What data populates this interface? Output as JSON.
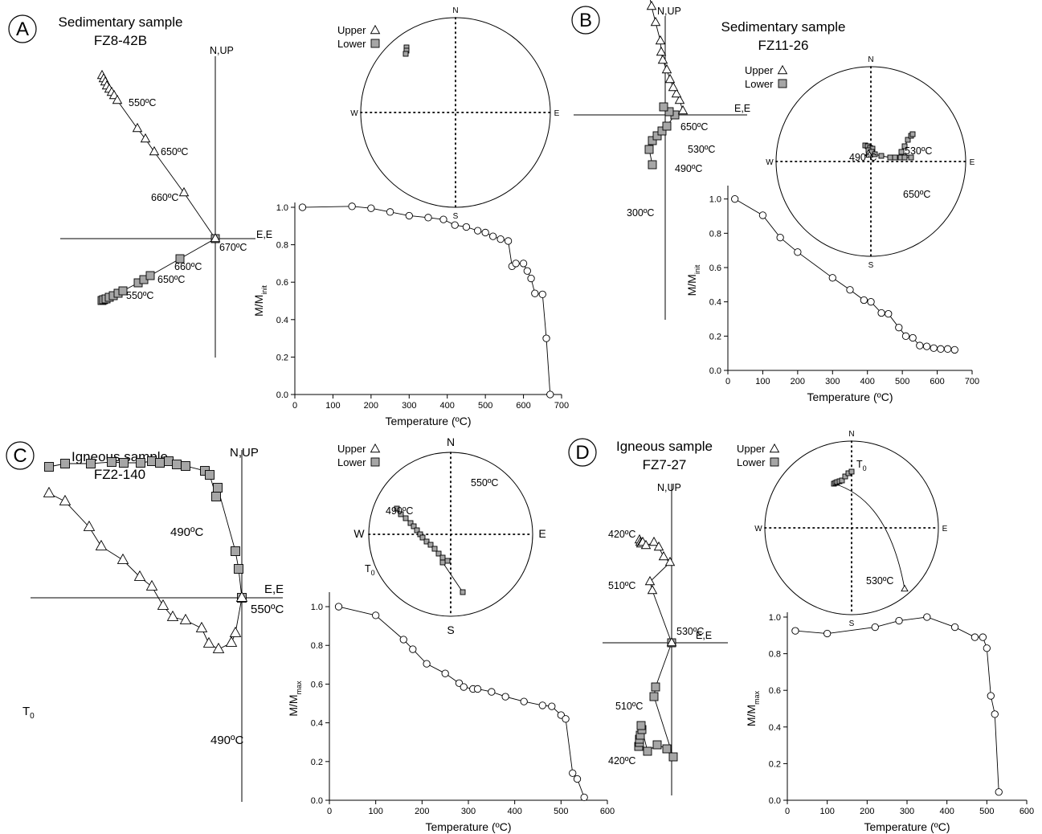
{
  "chart_data": [
    {
      "panel": "A",
      "title": "Sedimentary sample",
      "subtitle": "FZ8-42B",
      "zijderveld": {
        "axis_labels": {
          "vertical": "N,UP",
          "horizontal": "E,E"
        },
        "upper": [
          [
            -141,
            -203
          ],
          [
            -139,
            -199
          ],
          [
            -137,
            -195
          ],
          [
            -135,
            -190
          ],
          [
            -132,
            -186
          ],
          [
            -129,
            -182
          ],
          [
            -126,
            -178
          ],
          [
            -122,
            -172
          ],
          [
            -97,
            -137
          ],
          [
            -87,
            -124
          ],
          [
            -76,
            -108
          ],
          [
            -39,
            -57
          ],
          [
            0,
            0
          ]
        ],
        "lower": [
          [
            -141,
            77
          ],
          [
            -139,
            76
          ],
          [
            -136,
            75
          ],
          [
            -132,
            73
          ],
          [
            -127,
            71
          ],
          [
            -121,
            68
          ],
          [
            -115,
            65
          ],
          [
            -96,
            55
          ],
          [
            -89,
            51
          ],
          [
            -81,
            46
          ],
          [
            -44,
            25
          ],
          [
            0,
            0
          ]
        ],
        "annotations": [
          "550ºC",
          "650ºC",
          "660ºC",
          "670ºC",
          "660ºC",
          "650ºC",
          "550ºC"
        ]
      },
      "stereonet": {
        "directions": [
          "N",
          "S",
          "E",
          "W"
        ],
        "legend": [
          "Upper",
          "Lower"
        ],
        "lower_points": [
          [
            -61,
            -81
          ],
          [
            -61,
            -77
          ],
          [
            -62,
            -73
          ]
        ],
        "upper_points": []
      },
      "demag_curve": {
        "type": "line",
        "xlabel": "Temperature (ºC)",
        "ylabel_main": "M/M",
        "ylabel_sub": "init",
        "xlim": [
          0,
          700
        ],
        "ylim": [
          0,
          1
        ],
        "xticks": [
          0,
          100,
          200,
          300,
          400,
          500,
          600,
          700
        ],
        "yticks": [
          "0.0",
          "0.2",
          "0.4",
          "0.6",
          "0.8",
          "1.0"
        ],
        "x": [
          20,
          150,
          200,
          250,
          300,
          350,
          390,
          420,
          450,
          480,
          500,
          520,
          540,
          560,
          570,
          580,
          600,
          610,
          620,
          630,
          650,
          660,
          670
        ],
        "y": [
          1.0,
          1.005,
          0.995,
          0.975,
          0.955,
          0.945,
          0.935,
          0.905,
          0.895,
          0.875,
          0.865,
          0.845,
          0.83,
          0.82,
          0.685,
          0.7,
          0.7,
          0.66,
          0.62,
          0.54,
          0.535,
          0.3,
          0.0
        ]
      }
    },
    {
      "panel": "B",
      "title": "Sedimentary sample",
      "subtitle": "FZ11-26",
      "zijderveld": {
        "axis_labels": {
          "vertical": "N,UP",
          "horizontal": "E,E"
        },
        "upper": [
          [
            22,
            -5
          ],
          [
            18,
            -18
          ],
          [
            14,
            -26
          ],
          [
            10,
            -34
          ],
          [
            6,
            -44
          ],
          [
            2,
            -56
          ],
          [
            -3,
            -68
          ],
          [
            -5,
            -78
          ],
          [
            -6,
            -92
          ],
          [
            -12,
            -115
          ],
          [
            -17,
            -135
          ],
          [
            -20,
            -150
          ],
          [
            -22,
            -175
          ],
          [
            -24,
            -204
          ],
          [
            -20,
            -218
          ]
        ],
        "lower": [
          [
            -16,
            62
          ],
          [
            -20,
            43
          ],
          [
            -16,
            32
          ],
          [
            -10,
            26
          ],
          [
            -4,
            20
          ],
          [
            2,
            14
          ],
          [
            12,
            0
          ],
          [
            5,
            -4
          ],
          [
            -2,
            -10
          ]
        ],
        "annotations": [
          "650ºC",
          "530ºC",
          "490ºC",
          "300ºC"
        ]
      },
      "stereonet": {
        "directions": [
          "N",
          "S",
          "E",
          "W"
        ],
        "legend": [
          "Upper",
          "Lower"
        ],
        "lower_points": [
          [
            -7,
            -20
          ],
          [
            -4,
            -19
          ],
          [
            -1,
            -17
          ],
          [
            2,
            -16
          ],
          [
            -3,
            -14
          ],
          [
            1,
            -12
          ],
          [
            5,
            -9
          ],
          [
            13,
            -7
          ],
          [
            24,
            -5
          ],
          [
            30,
            -5
          ],
          [
            37,
            -5
          ],
          [
            42,
            -5
          ],
          [
            50,
            -5
          ],
          [
            38,
            -12
          ],
          [
            42,
            -19
          ],
          [
            46,
            -27
          ],
          [
            50,
            -32
          ],
          [
            52,
            -34
          ]
        ],
        "upper_points": [
          [
            -3,
            -10
          ],
          [
            -2,
            -8
          ]
        ],
        "annotations": [
          "530ºC",
          "490ºC",
          "650ºC"
        ]
      },
      "demag_curve": {
        "type": "line",
        "xlabel": "Temperature (ºC)",
        "ylabel_main": "M/M",
        "ylabel_sub": "init",
        "xlim": [
          0,
          700
        ],
        "ylim": [
          0,
          1.05
        ],
        "xticks": [
          0,
          100,
          200,
          300,
          400,
          500,
          600,
          700
        ],
        "yticks": [
          "0.0",
          "0.2",
          "0.4",
          "0.6",
          "0.8",
          "1.0"
        ],
        "x": [
          20,
          100,
          150,
          200,
          300,
          350,
          390,
          410,
          440,
          460,
          490,
          510,
          530,
          550,
          570,
          590,
          610,
          630,
          650
        ],
        "y": [
          1.0,
          0.905,
          0.775,
          0.69,
          0.54,
          0.47,
          0.41,
          0.4,
          0.335,
          0.33,
          0.25,
          0.2,
          0.19,
          0.145,
          0.14,
          0.13,
          0.125,
          0.125,
          0.12
        ]
      }
    },
    {
      "panel": "C",
      "title": "Igneous sample",
      "subtitle": "FZ2-140",
      "zijderveld": {
        "axis_labels": {
          "vertical": "N,UP",
          "horizontal": "E,E"
        },
        "upper": [
          [
            -240,
            -130
          ],
          [
            -220,
            -120
          ],
          [
            -190,
            -88
          ],
          [
            -175,
            -64
          ],
          [
            -148,
            -47
          ],
          [
            -127,
            -26
          ],
          [
            -112,
            -14
          ],
          [
            -98,
            10
          ],
          [
            -86,
            24
          ],
          [
            -70,
            28
          ],
          [
            -50,
            38
          ],
          [
            -41,
            57
          ],
          [
            -29,
            64
          ],
          [
            -13,
            56
          ],
          [
            -8,
            44
          ],
          [
            0,
            0
          ]
        ],
        "lower": [
          [
            -240,
            -163
          ],
          [
            -220,
            -167
          ],
          [
            -188,
            -167
          ],
          [
            -162,
            -169
          ],
          [
            -147,
            -168
          ],
          [
            -126,
            -168
          ],
          [
            -112,
            -170
          ],
          [
            -102,
            -168
          ],
          [
            -91,
            -170
          ],
          [
            -81,
            -166
          ],
          [
            -70,
            -164
          ],
          [
            -46,
            -158
          ],
          [
            -40,
            -153
          ],
          [
            -32,
            -126
          ],
          [
            -30,
            -137
          ],
          [
            -8,
            -58
          ],
          [
            -4,
            -36
          ],
          [
            0,
            0
          ]
        ],
        "annotations": [
          "490ºC",
          "550ºC",
          "490ºC"
        ],
        "start_label": "T"
      },
      "stereonet": {
        "directions": [
          "N",
          "S",
          "E",
          "W"
        ],
        "legend": [
          "Upper",
          "Lower"
        ],
        "lower_points": [
          [
            -67,
            -32
          ],
          [
            -62,
            -25
          ],
          [
            -56,
            -20
          ],
          [
            -50,
            -14
          ],
          [
            -46,
            -10
          ],
          [
            -42,
            -5
          ],
          [
            -38,
            0
          ],
          [
            -35,
            4
          ],
          [
            -30,
            9
          ],
          [
            -25,
            13
          ],
          [
            -20,
            18
          ],
          [
            -15,
            24
          ],
          [
            -10,
            29
          ],
          [
            -4,
            33
          ],
          [
            -10,
            35
          ],
          [
            15,
            72
          ]
        ],
        "upper_points": [],
        "annotations": [
          "550ºC",
          "490ºC"
        ],
        "start_label": "T"
      },
      "demag_curve": {
        "type": "line",
        "xlabel": "Temperature (ºC)",
        "ylabel_main": "M/M",
        "ylabel_sub": "max",
        "xlim": [
          0,
          600
        ],
        "ylim": [
          0,
          1.05
        ],
        "xticks": [
          0,
          100,
          200,
          300,
          400,
          500,
          600
        ],
        "yticks": [
          "0.0",
          "0.2",
          "0.4",
          "0.6",
          "0.8",
          "1.0"
        ],
        "x": [
          20,
          100,
          160,
          180,
          210,
          250,
          280,
          290,
          310,
          320,
          350,
          380,
          420,
          460,
          480,
          500,
          510,
          525,
          535,
          550
        ],
        "y": [
          1.0,
          0.955,
          0.83,
          0.78,
          0.705,
          0.655,
          0.605,
          0.585,
          0.575,
          0.575,
          0.56,
          0.535,
          0.51,
          0.49,
          0.485,
          0.44,
          0.42,
          0.14,
          0.11,
          0.015
        ]
      }
    },
    {
      "panel": "D",
      "title": "Igneous sample",
      "subtitle": "FZ7-27",
      "zijderveld": {
        "axis_labels": {
          "vertical": "N,UP",
          "horizontal": "E,E"
        },
        "upper": [
          [
            -40,
            -128
          ],
          [
            -39,
            -125
          ],
          [
            -38,
            -123
          ],
          [
            -36,
            -125
          ],
          [
            -32,
            -121
          ],
          [
            -22,
            -125
          ],
          [
            -16,
            -119
          ],
          [
            -10,
            -107
          ],
          [
            -2,
            -100
          ],
          [
            -27,
            -76
          ],
          [
            -24,
            -65
          ],
          [
            0,
            0
          ]
        ],
        "lower": [
          [
            -41,
            129
          ],
          [
            -40,
            124
          ],
          [
            -40,
            120
          ],
          [
            -39,
            115
          ],
          [
            -37,
            108
          ],
          [
            -38,
            103
          ],
          [
            -30,
            135
          ],
          [
            -18,
            127
          ],
          [
            -6,
            132
          ],
          [
            2,
            142
          ],
          [
            -22,
            67
          ],
          [
            -20,
            55
          ],
          [
            0,
            0
          ]
        ],
        "annotations": [
          "420ºC",
          "510ºC",
          "530ºC",
          "510ºC",
          "420ºC"
        ]
      },
      "stereonet": {
        "directions": [
          "N",
          "S",
          "E",
          "W"
        ],
        "legend": [
          "Upper",
          "Lower"
        ],
        "lower_points": [
          [
            -22,
            -55
          ],
          [
            -20,
            -56
          ],
          [
            -18,
            -57
          ],
          [
            -15,
            -58
          ],
          [
            -12,
            -59
          ],
          [
            -8,
            -64
          ],
          [
            -4,
            -68
          ],
          [
            0,
            -70
          ]
        ],
        "upper_points": [
          [
            66,
            76
          ]
        ],
        "annotations": [
          "530ºC"
        ],
        "start_label": "T"
      },
      "demag_curve": {
        "type": "line",
        "xlabel": "Temperature (ºC)",
        "ylabel_main": "M/M",
        "ylabel_sub": "max",
        "xlim": [
          0,
          600
        ],
        "ylim": [
          0,
          1.0
        ],
        "xticks": [
          0,
          100,
          200,
          300,
          400,
          500,
          600
        ],
        "yticks": [
          "0.0",
          "0.2",
          "0.4",
          "0.6",
          "0.8",
          "1.0"
        ],
        "x": [
          20,
          100,
          220,
          280,
          350,
          420,
          470,
          490,
          500,
          510,
          520,
          530
        ],
        "y": [
          0.925,
          0.91,
          0.945,
          0.98,
          1.0,
          0.945,
          0.89,
          0.89,
          0.83,
          0.57,
          0.47,
          0.045
        ]
      }
    }
  ]
}
